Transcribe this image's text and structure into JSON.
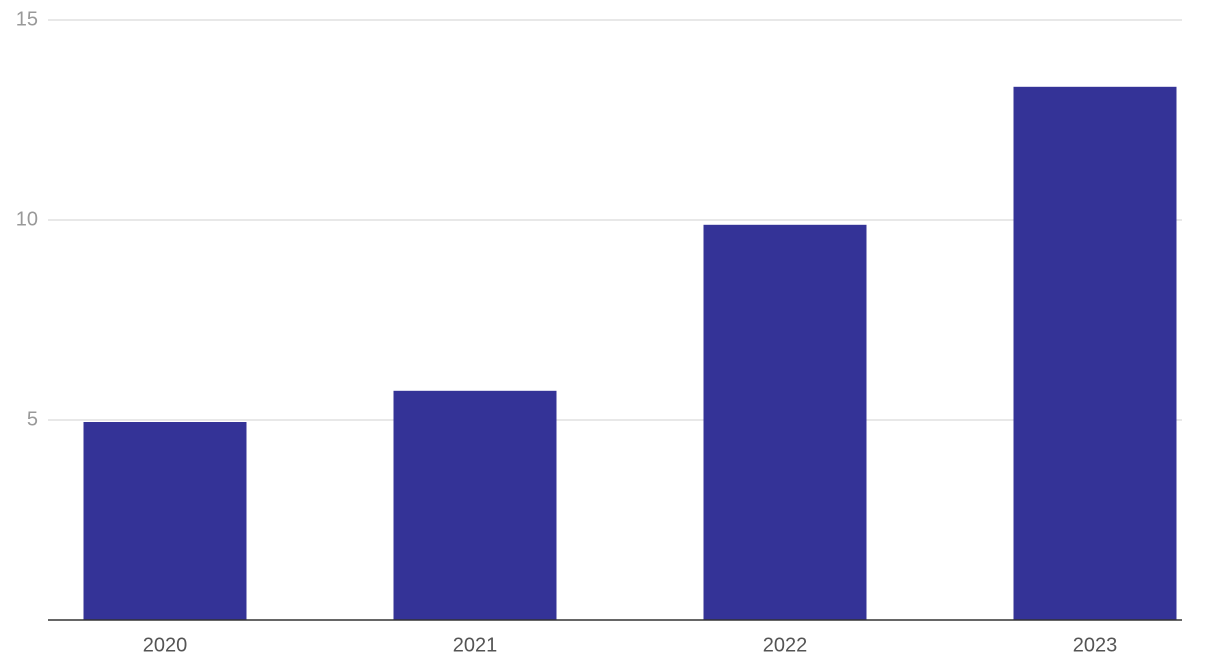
{
  "chart_data": {
    "type": "bar",
    "categories": [
      "2020",
      "2021",
      "2022",
      "2023"
    ],
    "values": [
      4.95,
      5.73,
      9.88,
      13.33
    ],
    "color": "#343397",
    "ylim": [
      0,
      15
    ],
    "yticks": [
      5,
      10,
      15
    ],
    "grid": true
  }
}
